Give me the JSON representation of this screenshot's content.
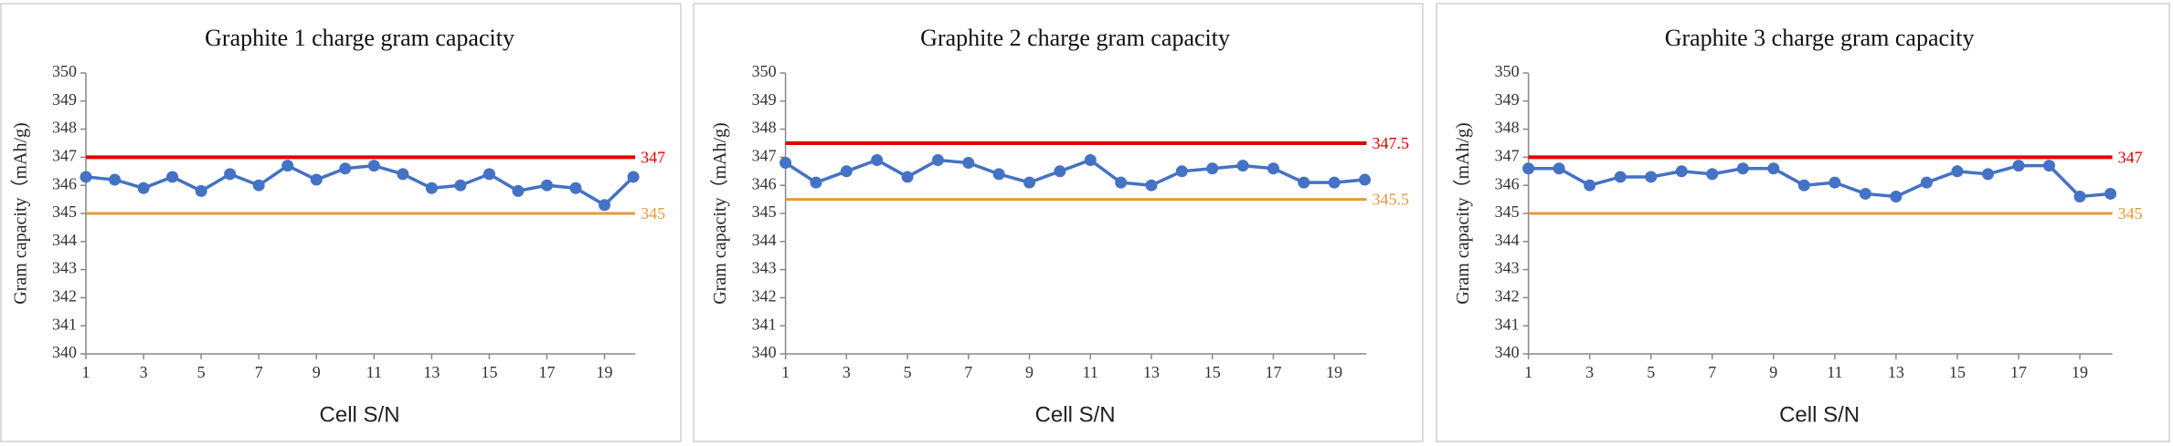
{
  "chart_data": [
    {
      "type": "line",
      "title": "Graphite 1 charge gram capacity",
      "x_label": "Cell S/N",
      "y_label": "Gram capacity（mAh/g)",
      "x": [
        1,
        2,
        3,
        4,
        5,
        6,
        7,
        8,
        9,
        10,
        11,
        12,
        13,
        14,
        15,
        16,
        17,
        18,
        19,
        20
      ],
      "series": [
        {
          "color": "#4472c4",
          "values": [
            346.3,
            346.2,
            345.9,
            346.3,
            345.8,
            346.4,
            346.0,
            346.7,
            346.2,
            346.6,
            346.7,
            346.4,
            345.9,
            346.0,
            346.4,
            345.8,
            346.0,
            345.9,
            345.3,
            346.3
          ]
        }
      ],
      "reference_lines": [
        {
          "value": 347,
          "color": "#e00000"
        },
        {
          "value": 345,
          "color": "#e39a3c"
        }
      ],
      "xlim": [
        1,
        20
      ],
      "xticks": [
        1,
        3,
        5,
        7,
        9,
        11,
        13,
        15,
        17,
        19
      ],
      "ylim": [
        340,
        350
      ],
      "yticks": [
        340,
        341,
        342,
        343,
        344,
        345,
        346,
        347,
        348,
        349,
        350
      ],
      "grid": false
    },
    {
      "type": "line",
      "title": "Graphite 2 charge gram capacity",
      "x_label": "Cell S/N",
      "y_label": "Gram capacity（mAh/g)",
      "x": [
        1,
        2,
        3,
        4,
        5,
        6,
        7,
        8,
        9,
        10,
        11,
        12,
        13,
        14,
        15,
        16,
        17,
        18,
        19,
        20
      ],
      "series": [
        {
          "color": "#4472c4",
          "values": [
            346.8,
            346.1,
            346.5,
            346.9,
            346.3,
            346.9,
            346.8,
            346.4,
            346.1,
            346.5,
            346.9,
            346.1,
            346.0,
            346.5,
            346.6,
            346.7,
            346.6,
            346.1,
            346.1,
            346.2
          ]
        }
      ],
      "reference_lines": [
        {
          "value": 347.5,
          "color": "#e00000"
        },
        {
          "value": 345.5,
          "color": "#e39a3c"
        }
      ],
      "xlim": [
        1,
        20
      ],
      "xticks": [
        1,
        3,
        5,
        7,
        9,
        11,
        13,
        15,
        17,
        19
      ],
      "ylim": [
        340,
        350
      ],
      "yticks": [
        340,
        341,
        342,
        343,
        344,
        345,
        346,
        347,
        348,
        349,
        350
      ],
      "grid": false
    },
    {
      "type": "line",
      "title": "Graphite 3 charge gram capacity",
      "x_label": "Cell S/N",
      "y_label": "Gram capacity（mAh/g)",
      "x": [
        1,
        2,
        3,
        4,
        5,
        6,
        7,
        8,
        9,
        10,
        11,
        12,
        13,
        14,
        15,
        16,
        17,
        18,
        19,
        20
      ],
      "series": [
        {
          "color": "#4472c4",
          "values": [
            346.6,
            346.6,
            346.0,
            346.3,
            346.3,
            346.5,
            346.4,
            346.6,
            346.6,
            346.0,
            346.1,
            345.7,
            345.6,
            346.1,
            346.5,
            346.4,
            346.7,
            346.7,
            345.6,
            345.7
          ]
        }
      ],
      "reference_lines": [
        {
          "value": 347,
          "color": "#e00000"
        },
        {
          "value": 345,
          "color": "#e39a3c"
        }
      ],
      "xlim": [
        1,
        20
      ],
      "xticks": [
        1,
        3,
        5,
        7,
        9,
        11,
        13,
        15,
        17,
        19
      ],
      "ylim": [
        340,
        350
      ],
      "yticks": [
        340,
        341,
        342,
        343,
        344,
        345,
        346,
        347,
        348,
        349,
        350
      ],
      "grid": false
    }
  ]
}
